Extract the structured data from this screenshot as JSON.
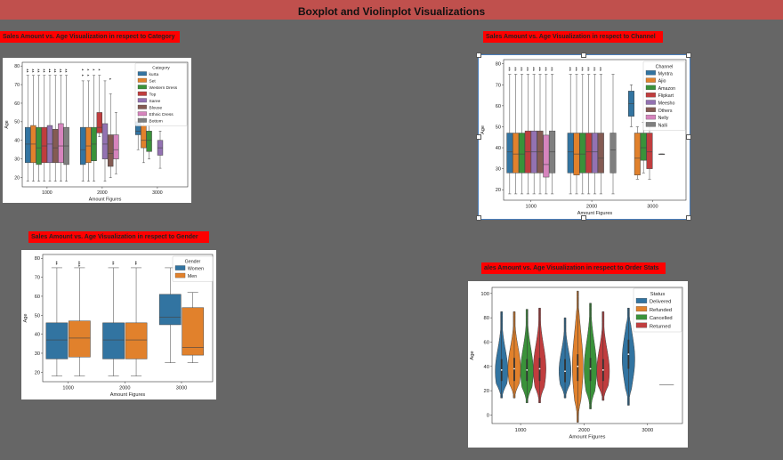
{
  "banner": {
    "title": "Boxplot and Violinplot Visualizations"
  },
  "labels": {
    "category": "Sales Amount vs. Age Visualization in respect to Category",
    "channel": "Sales Amount vs. Age Visualization in respect to Channel",
    "gender": "Sales Amount vs. Age Visualization in respect to Gender",
    "status": "ales Amount vs. Age Visualization in respect to Order Stats"
  },
  "chart_data": [
    {
      "id": "category",
      "type": "box",
      "title": "",
      "xlabel": "Amount Figures",
      "ylabel": "Age",
      "ylim": [
        15,
        82
      ],
      "yticks": [
        20,
        30,
        40,
        50,
        60,
        70,
        80
      ],
      "xticks": [
        {
          "label": "1000",
          "pos": 1
        },
        {
          "label": "2000",
          "pos": 2
        },
        {
          "label": "3000",
          "pos": 3
        }
      ],
      "xlim": [
        0.55,
        3.55
      ],
      "legend": {
        "title": "Category",
        "placement": "top-right"
      },
      "series": [
        {
          "name": "kurta",
          "color": "#3274a1"
        },
        {
          "name": "Set",
          "color": "#e1812c"
        },
        {
          "name": "Western Dress",
          "color": "#3a923a"
        },
        {
          "name": "Top",
          "color": "#c03d3e"
        },
        {
          "name": "Saree",
          "color": "#9372b2"
        },
        {
          "name": "Blouse",
          "color": "#845b53"
        },
        {
          "name": "Ethnic Dress",
          "color": "#d684bd"
        },
        {
          "name": "Bottom",
          "color": "#7f7f7f"
        }
      ],
      "groups": [
        {
          "x": 1,
          "boxes": [
            {
              "s": 0,
              "stats": [
                18,
                28,
                38,
                47,
                75
              ],
              "outliers": [
                77,
                78
              ]
            },
            {
              "s": 1,
              "stats": [
                18,
                28,
                38,
                48,
                75
              ],
              "outliers": [
                77,
                78
              ]
            },
            {
              "s": 2,
              "stats": [
                18,
                27,
                36,
                47,
                75
              ],
              "outliers": [
                77,
                78
              ]
            },
            {
              "s": 3,
              "stats": [
                18,
                28,
                37,
                47,
                75
              ],
              "outliers": [
                77,
                78
              ]
            },
            {
              "s": 4,
              "stats": [
                18,
                28,
                38,
                48,
                75
              ],
              "outliers": [
                77,
                78
              ]
            },
            {
              "s": 5,
              "stats": [
                18,
                28,
                36,
                46,
                75
              ],
              "outliers": [
                77,
                78
              ]
            },
            {
              "s": 6,
              "stats": [
                18,
                28,
                37,
                49,
                75
              ],
              "outliers": [
                77,
                78
              ]
            },
            {
              "s": 7,
              "stats": [
                18,
                27,
                37,
                47,
                75
              ],
              "outliers": [
                77,
                78
              ]
            }
          ]
        },
        {
          "x": 2,
          "boxes": [
            {
              "s": 0,
              "stats": [
                18,
                27,
                35,
                47,
                72
              ],
              "outliers": [
                75,
                78
              ]
            },
            {
              "s": 1,
              "stats": [
                18,
                28,
                37,
                47,
                72
              ],
              "outliers": [
                75,
                78
              ]
            },
            {
              "s": 2,
              "stats": [
                18,
                29,
                38,
                47,
                75
              ],
              "outliers": [
                78
              ]
            },
            {
              "s": 3,
              "stats": [
                42,
                44,
                47,
                55,
                75
              ],
              "outliers": [
                78
              ]
            },
            {
              "s": 4,
              "stats": [
                18,
                30,
                38,
                49,
                72
              ],
              "outliers": []
            },
            {
              "s": 5,
              "stats": [
                20,
                26,
                33,
                43,
                65
              ],
              "outliers": [
                73
              ]
            },
            {
              "s": 6,
              "stats": [
                22,
                30,
                35,
                43,
                55
              ],
              "outliers": []
            }
          ]
        },
        {
          "x": 3,
          "boxes": [
            {
              "s": 0,
              "stats": [
                35,
                43,
                45,
                50,
                55
              ],
              "outliers": []
            },
            {
              "s": 1,
              "stats": [
                28,
                36,
                40,
                48,
                55
              ],
              "outliers": []
            },
            {
              "s": 2,
              "stats": [
                30,
                34,
                40,
                45,
                50
              ],
              "outliers": []
            },
            {
              "s": 4,
              "stats": [
                25,
                32,
                36,
                40,
                45
              ],
              "outliers": []
            }
          ]
        }
      ]
    },
    {
      "id": "channel",
      "type": "box",
      "title": "",
      "xlabel": "Amount Figures",
      "ylabel": "Age",
      "ylim": [
        15,
        82
      ],
      "yticks": [
        20,
        30,
        40,
        50,
        60,
        70,
        80
      ],
      "xticks": [
        {
          "label": "1000",
          "pos": 1
        },
        {
          "label": "2000",
          "pos": 2
        },
        {
          "label": "3000",
          "pos": 3
        }
      ],
      "xlim": [
        0.55,
        3.55
      ],
      "legend": {
        "title": "Channel",
        "placement": "top-right"
      },
      "series": [
        {
          "name": "Myntra",
          "color": "#3274a1"
        },
        {
          "name": "Ajio",
          "color": "#e1812c"
        },
        {
          "name": "Amazon",
          "color": "#3a923a"
        },
        {
          "name": "Flipkart",
          "color": "#c03d3e"
        },
        {
          "name": "Meesho",
          "color": "#9372b2"
        },
        {
          "name": "Others",
          "color": "#845b53"
        },
        {
          "name": "Nelly",
          "color": "#d684bd"
        },
        {
          "name": "Nalli",
          "color": "#7f7f7f"
        }
      ],
      "groups": [
        {
          "x": 1,
          "boxes": [
            {
              "s": 0,
              "stats": [
                18,
                28,
                38,
                47,
                75
              ],
              "outliers": [
                77,
                78
              ]
            },
            {
              "s": 1,
              "stats": [
                18,
                28,
                37,
                47,
                75
              ],
              "outliers": [
                77,
                78
              ]
            },
            {
              "s": 2,
              "stats": [
                18,
                28,
                37,
                47,
                75
              ],
              "outliers": [
                77,
                78
              ]
            },
            {
              "s": 3,
              "stats": [
                18,
                28,
                38,
                48,
                75
              ],
              "outliers": [
                77,
                78
              ]
            },
            {
              "s": 4,
              "stats": [
                18,
                28,
                38,
                48,
                75
              ],
              "outliers": [
                77,
                78
              ]
            },
            {
              "s": 5,
              "stats": [
                18,
                28,
                38,
                48,
                75
              ],
              "outliers": [
                77,
                78
              ]
            },
            {
              "s": 6,
              "stats": [
                18,
                26,
                32,
                46,
                75
              ],
              "outliers": [
                77,
                78
              ]
            },
            {
              "s": 7,
              "stats": [
                18,
                28,
                38,
                48,
                75
              ],
              "outliers": [
                77,
                78
              ]
            }
          ]
        },
        {
          "x": 2,
          "boxes": [
            {
              "s": 0,
              "stats": [
                18,
                28,
                38,
                47,
                75
              ],
              "outliers": [
                77,
                78
              ]
            },
            {
              "s": 1,
              "stats": [
                18,
                27,
                37,
                47,
                75
              ],
              "outliers": [
                77,
                78
              ]
            },
            {
              "s": 2,
              "stats": [
                18,
                28,
                37,
                47,
                75
              ],
              "outliers": [
                77,
                78
              ]
            },
            {
              "s": 3,
              "stats": [
                18,
                28,
                38,
                47,
                75
              ],
              "outliers": [
                77,
                78
              ]
            },
            {
              "s": 4,
              "stats": [
                18,
                28,
                38,
                47,
                75
              ],
              "outliers": [
                77,
                78
              ]
            },
            {
              "s": 5,
              "stats": [
                18,
                28,
                35,
                47,
                75
              ],
              "outliers": [
                77,
                78
              ]
            },
            {
              "s": 7,
              "stats": [
                18,
                28,
                39,
                47,
                75
              ],
              "outliers": []
            }
          ]
        },
        {
          "x": 3,
          "boxes": [
            {
              "s": 0,
              "stats": [
                50,
                55,
                61,
                67,
                70
              ],
              "outliers": []
            },
            {
              "s": 1,
              "stats": [
                25,
                27,
                35,
                47,
                50
              ],
              "outliers": []
            },
            {
              "s": 2,
              "stats": [
                28,
                34,
                40,
                47,
                52
              ],
              "outliers": []
            },
            {
              "s": 3,
              "stats": [
                25,
                30,
                38,
                47,
                52
              ],
              "outliers": []
            },
            {
              "s": 5,
              "stats": [
                37,
                37,
                37,
                37,
                37
              ],
              "outliers": []
            }
          ]
        }
      ]
    },
    {
      "id": "gender",
      "type": "box",
      "title": "",
      "xlabel": "Amount Figures",
      "ylabel": "Age",
      "ylim": [
        15,
        82
      ],
      "yticks": [
        20,
        30,
        40,
        50,
        60,
        70,
        80
      ],
      "xticks": [
        {
          "label": "1000",
          "pos": 1
        },
        {
          "label": "2000",
          "pos": 2
        },
        {
          "label": "3000",
          "pos": 3
        }
      ],
      "xlim": [
        0.55,
        3.55
      ],
      "legend": {
        "title": "Gender",
        "placement": "top-right"
      },
      "series": [
        {
          "name": "Women",
          "color": "#3274a1"
        },
        {
          "name": "Men",
          "color": "#e1812c"
        }
      ],
      "groups": [
        {
          "x": 1,
          "boxes": [
            {
              "s": 0,
              "stats": [
                18,
                27,
                37,
                46,
                75
              ],
              "outliers": [
                77,
                78
              ]
            },
            {
              "s": 1,
              "stats": [
                18,
                28,
                38,
                47,
                75
              ],
              "outliers": [
                76,
                77,
                78
              ]
            }
          ]
        },
        {
          "x": 2,
          "boxes": [
            {
              "s": 0,
              "stats": [
                18,
                27,
                37,
                46,
                75
              ],
              "outliers": [
                77,
                78
              ]
            },
            {
              "s": 1,
              "stats": [
                18,
                27,
                37,
                46,
                75
              ],
              "outliers": [
                77,
                78
              ]
            }
          ]
        },
        {
          "x": 3,
          "boxes": [
            {
              "s": 0,
              "stats": [
                25,
                45,
                49,
                61,
                75
              ],
              "outliers": []
            },
            {
              "s": 1,
              "stats": [
                25,
                29,
                33,
                54,
                62
              ],
              "outliers": []
            }
          ]
        }
      ]
    },
    {
      "id": "status",
      "type": "violin",
      "title": "",
      "xlabel": "Amount Figures",
      "ylabel": "Age",
      "ylim": [
        -7,
        105
      ],
      "yticks": [
        0,
        20,
        40,
        60,
        80,
        100
      ],
      "xticks": [
        {
          "label": "1000",
          "pos": 1
        },
        {
          "label": "2000",
          "pos": 2
        },
        {
          "label": "3000",
          "pos": 3
        }
      ],
      "xlim": [
        0.55,
        3.55
      ],
      "legend": {
        "title": "Status",
        "placement": "top-right"
      },
      "series": [
        {
          "name": "Delivered",
          "color": "#3274a1"
        },
        {
          "name": "Refunded",
          "color": "#e1812c"
        },
        {
          "name": "Cancelled",
          "color": "#3a923a"
        },
        {
          "name": "Returned",
          "color": "#c03d3e"
        }
      ],
      "groups": [
        {
          "x": 1,
          "violins": [
            {
              "s": 0,
              "min": 14,
              "max": 85,
              "median": 37,
              "q1": 28,
              "q3": 46,
              "peak": 36,
              "width": 1.0
            },
            {
              "s": 1,
              "min": 14,
              "max": 85,
              "median": 38,
              "q1": 28,
              "q3": 47,
              "peak": 38,
              "width": 1.0
            },
            {
              "s": 2,
              "min": 10,
              "max": 87,
              "median": 37,
              "q1": 28,
              "q3": 46,
              "peak": 36,
              "width": 1.0
            },
            {
              "s": 3,
              "min": 10,
              "max": 88,
              "median": 38,
              "q1": 28,
              "q3": 47,
              "peak": 38,
              "width": 1.0
            }
          ]
        },
        {
          "x": 2,
          "violins": [
            {
              "s": 0,
              "min": 14,
              "max": 80,
              "median": 36,
              "q1": 27,
              "q3": 46,
              "peak": 36,
              "width": 0.95
            },
            {
              "s": 1,
              "min": -6,
              "max": 102,
              "median": 40,
              "q1": 28,
              "q3": 50,
              "peak": 40,
              "width": 0.85
            },
            {
              "s": 2,
              "min": 5,
              "max": 92,
              "median": 38,
              "q1": 28,
              "q3": 47,
              "peak": 38,
              "width": 1.0
            },
            {
              "s": 3,
              "min": 12,
              "max": 85,
              "median": 37,
              "q1": 28,
              "q3": 46,
              "peak": 36,
              "width": 1.0
            }
          ]
        },
        {
          "x": 3,
          "violins": [
            {
              "s": 0,
              "min": 8,
              "max": 88,
              "median": 50,
              "q1": 38,
              "q3": 62,
              "peak": 46,
              "width": 1.0
            },
            {
              "s": 3,
              "min": 25,
              "max": 25,
              "median": 25,
              "q1": 25,
              "q3": 25,
              "peak": 25,
              "width": 0
            }
          ]
        }
      ]
    }
  ]
}
